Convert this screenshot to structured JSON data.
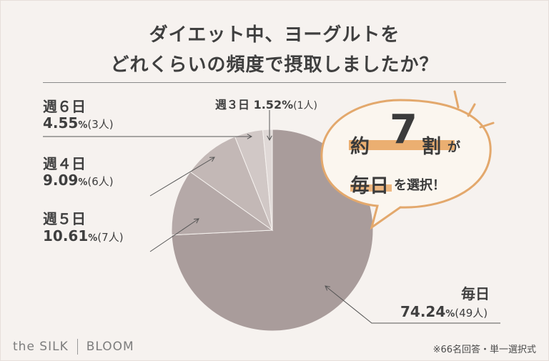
{
  "title": {
    "line1": "ダイエット中、ヨーグルトを",
    "line2": "どれくらいの頻度で摂取しましたか？"
  },
  "chart_data": {
    "type": "pie",
    "slices": [
      {
        "category": "毎日",
        "percent": 74.24,
        "count": "49人",
        "color": "#a99c9b"
      },
      {
        "category": "週５日",
        "percent": 10.61,
        "count": "7人",
        "color": "#b5a9a8"
      },
      {
        "category": "週４日",
        "percent": 9.09,
        "count": "6人",
        "color": "#c3b8b6"
      },
      {
        "category": "週６日",
        "percent": 4.55,
        "count": "3人",
        "color": "#d1c8c6"
      },
      {
        "category": "週３日",
        "percent": 1.52,
        "count": "1人",
        "color": "#e0d9d7"
      }
    ]
  },
  "labels": {
    "daily": {
      "cat": "毎日",
      "val": "74.24",
      "cnt": "(49人)"
    },
    "w5": {
      "cat": "週５日",
      "val": "10.61",
      "cnt": "(7人)"
    },
    "w4": {
      "cat": "週４日",
      "val": "9.09",
      "cnt": "(6人)"
    },
    "w6": {
      "cat": "週６日",
      "val": "4.55",
      "cnt": "(3人)"
    },
    "w3": {
      "cat": "週３日",
      "val": "1.52",
      "cnt": "(1人)"
    },
    "pct_sign": "%"
  },
  "callout": {
    "prefix": "約",
    "number": "7",
    "suffix": "割",
    "ga": "が",
    "line2_bold": "毎日",
    "line2_rest": "を選択！",
    "bubble_color": "#fbf6ef",
    "border_color": "#e3a86c",
    "accent_color": "#e8a25b"
  },
  "footer": {
    "logo_left": "the SILK",
    "logo_right": "BLOOM",
    "note": "※66名回答・単一選択式"
  }
}
